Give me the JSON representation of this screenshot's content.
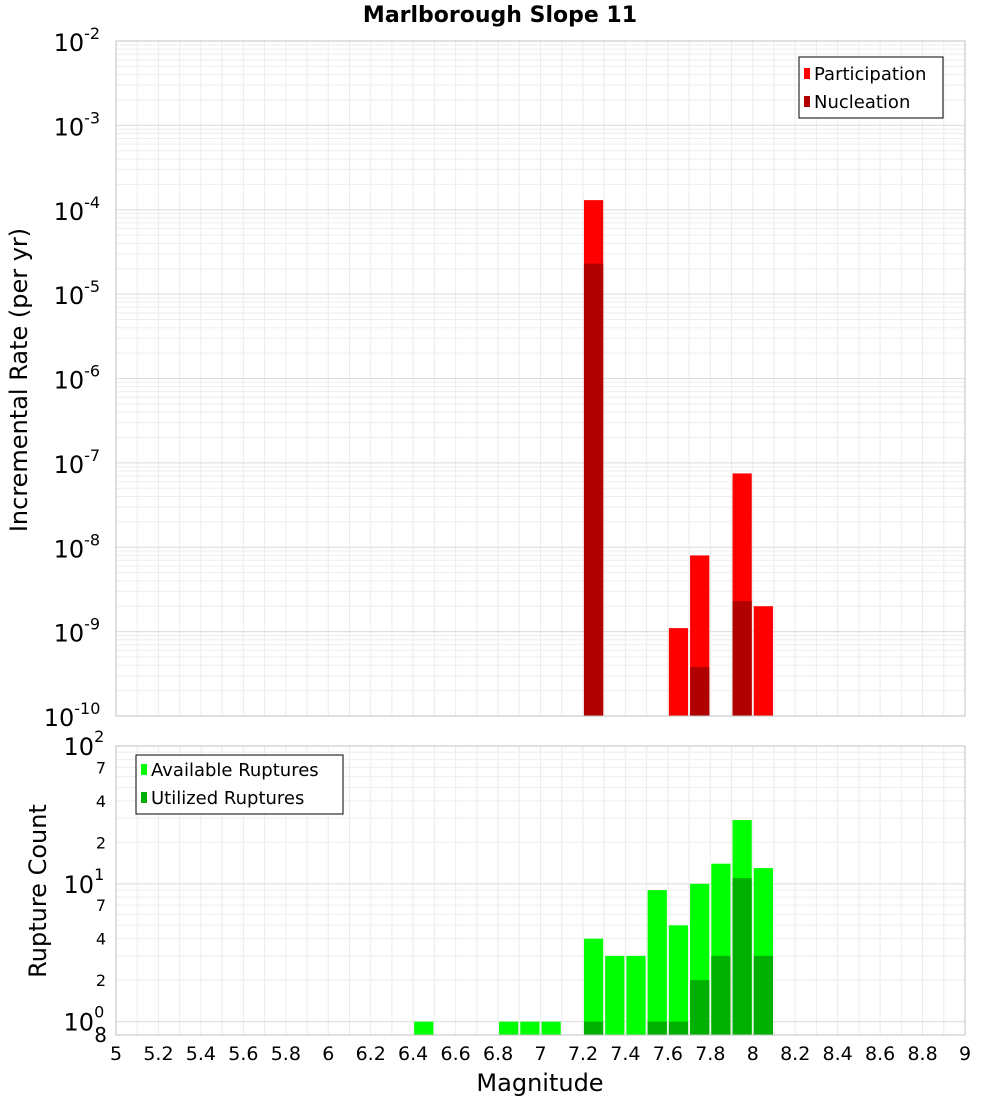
{
  "chart_data": [
    {
      "type": "bar",
      "title": "Marlborough Slope 11",
      "xlabel": "Magnitude",
      "ylabel": "Incremental Rate (per yr)",
      "yscale": "log",
      "ylim": [
        1e-10,
        0.01
      ],
      "xlim": [
        5,
        9
      ],
      "legend_position": "top-right",
      "y_tick_labels": [
        {
          "base": "10",
          "exp": "-10"
        },
        {
          "base": "10",
          "exp": "-9"
        },
        {
          "base": "10",
          "exp": "-8"
        },
        {
          "base": "10",
          "exp": "-7"
        },
        {
          "base": "10",
          "exp": "-6"
        },
        {
          "base": "10",
          "exp": "-5"
        },
        {
          "base": "10",
          "exp": "-4"
        },
        {
          "base": "10",
          "exp": "-3"
        },
        {
          "base": "10",
          "exp": "-2"
        }
      ],
      "series": [
        {
          "name": "Participation",
          "color": "#ff0000",
          "points": [
            {
              "x": 7.25,
              "y": 0.00013
            },
            {
              "x": 7.65,
              "y": 1.1e-09
            },
            {
              "x": 7.75,
              "y": 8e-09
            },
            {
              "x": 7.95,
              "y": 7.5e-08
            },
            {
              "x": 8.05,
              "y": 2e-09
            }
          ]
        },
        {
          "name": "Nucleation",
          "color": "#b00000",
          "points": [
            {
              "x": 7.25,
              "y": 2.3e-05
            },
            {
              "x": 7.75,
              "y": 3.8e-10
            },
            {
              "x": 7.95,
              "y": 2.3e-09
            }
          ]
        }
      ]
    },
    {
      "type": "bar",
      "xlabel": "Magnitude",
      "ylabel": "Rupture Count",
      "yscale": "log",
      "ylim": [
        0.8,
        100
      ],
      "xlim": [
        5,
        9
      ],
      "legend_position": "top-left",
      "x_tick_labels": [
        "5",
        "5.2",
        "5.4",
        "5.6",
        "5.8",
        "6",
        "6.2",
        "6.4",
        "6.6",
        "6.8",
        "7",
        "7.2",
        "7.4",
        "7.6",
        "7.8",
        "8",
        "8.2",
        "8.4",
        "8.6",
        "8.8",
        "9"
      ],
      "y_major_labels": [
        {
          "base": "10",
          "exp": "0"
        },
        {
          "base": "10",
          "exp": "1"
        },
        {
          "base": "10",
          "exp": "2"
        }
      ],
      "y_minor_labels": [
        "2",
        "4",
        "7",
        "2",
        "4",
        "7"
      ],
      "y_bottom_label": "8",
      "series": [
        {
          "name": "Available Ruptures",
          "color": "#00ff00",
          "points": [
            {
              "x": 6.45,
              "y": 1
            },
            {
              "x": 6.85,
              "y": 1
            },
            {
              "x": 6.95,
              "y": 1
            },
            {
              "x": 7.05,
              "y": 1
            },
            {
              "x": 7.25,
              "y": 4
            },
            {
              "x": 7.35,
              "y": 3
            },
            {
              "x": 7.45,
              "y": 3
            },
            {
              "x": 7.55,
              "y": 9
            },
            {
              "x": 7.65,
              "y": 5
            },
            {
              "x": 7.75,
              "y": 10
            },
            {
              "x": 7.85,
              "y": 14
            },
            {
              "x": 7.95,
              "y": 29
            },
            {
              "x": 8.05,
              "y": 13
            }
          ]
        },
        {
          "name": "Utilized Ruptures",
          "color": "#00b000",
          "points": [
            {
              "x": 7.25,
              "y": 1
            },
            {
              "x": 7.55,
              "y": 1
            },
            {
              "x": 7.65,
              "y": 1
            },
            {
              "x": 7.75,
              "y": 2
            },
            {
              "x": 7.85,
              "y": 3
            },
            {
              "x": 7.95,
              "y": 11
            },
            {
              "x": 8.05,
              "y": 3
            }
          ]
        }
      ]
    }
  ]
}
